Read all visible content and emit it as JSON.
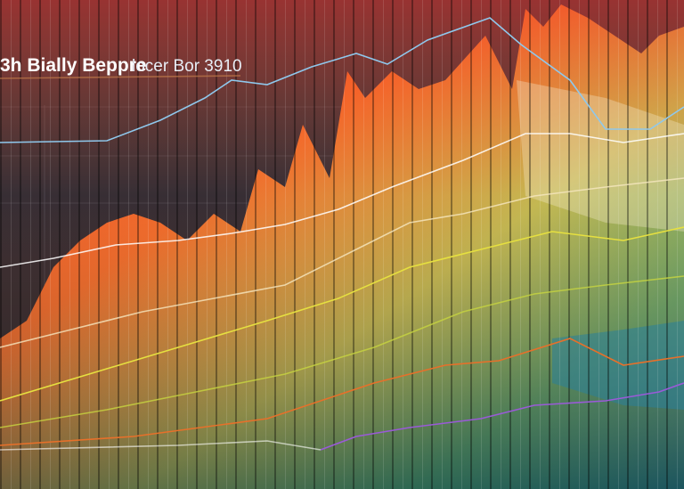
{
  "header": {
    "title": "3h Bially Beppre",
    "subtitle": "locer Bor 3910"
  }
}
